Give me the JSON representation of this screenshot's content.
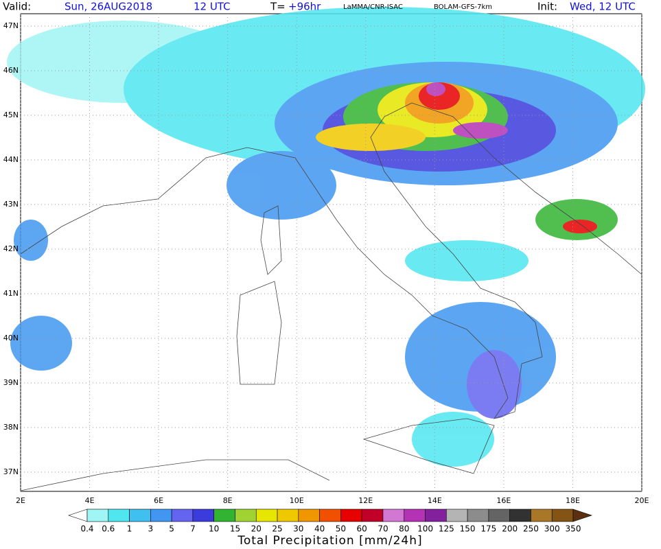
{
  "header": {
    "valid_label": "Valid:",
    "valid_day": "Sun, 26AUG2018",
    "valid_hour": "12 UTC",
    "lead_label": "T=",
    "lead_time": "+96hr",
    "institution": "LaMMA/CNR-ISAC",
    "model": "BOLAM-GFS-7km",
    "init_label": "Init:",
    "init_time": "Wed, 12 UTC"
  },
  "map": {
    "lat_labels": [
      "47N",
      "46N",
      "45N",
      "44N",
      "43N",
      "42N",
      "41N",
      "40N",
      "39N",
      "38N",
      "37N"
    ],
    "lon_labels": [
      "2E",
      "4E",
      "6E",
      "8E",
      "10E",
      "12E",
      "14E",
      "16E",
      "18E",
      "20E"
    ]
  },
  "colorbar": {
    "title": "Total Precipitation [mm/24h]",
    "levels": [
      0.4,
      0.6,
      1,
      3,
      5,
      7,
      10,
      15,
      20,
      25,
      30,
      40,
      50,
      60,
      70,
      80,
      100,
      125,
      150,
      175,
      200,
      250,
      300,
      350
    ],
    "colors": [
      "#ffffff",
      "#a0f5f5",
      "#50e6f0",
      "#40c0f0",
      "#4096f0",
      "#6464f0",
      "#3c3cdc",
      "#32b432",
      "#a0d232",
      "#e6e600",
      "#f0c800",
      "#f09600",
      "#f05000",
      "#e60000",
      "#c00028",
      "#d278d2",
      "#b432b4",
      "#82209e",
      "#b4b4b4",
      "#8c8c8c",
      "#646464",
      "#323232",
      "#a87828",
      "#845414",
      "#5a3010"
    ]
  }
}
